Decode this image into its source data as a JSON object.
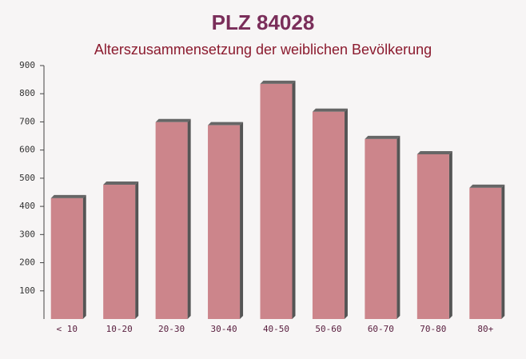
{
  "chart_data": {
    "type": "bar",
    "title": "PLZ 84028",
    "subtitle": "Alterszusammensetzung der weiblichen Bevölkerung",
    "categories": [
      "< 10",
      "10-20",
      "20-30",
      "30-40",
      "40-50",
      "50-60",
      "60-70",
      "70-80",
      "80+"
    ],
    "values": [
      429,
      477,
      699,
      688,
      835,
      736,
      639,
      585,
      466
    ],
    "color": "#c47178",
    "ylim": [
      0,
      900
    ],
    "yticks": [
      100,
      200,
      300,
      400,
      500,
      600,
      700,
      800,
      900
    ],
    "grid": false
  }
}
